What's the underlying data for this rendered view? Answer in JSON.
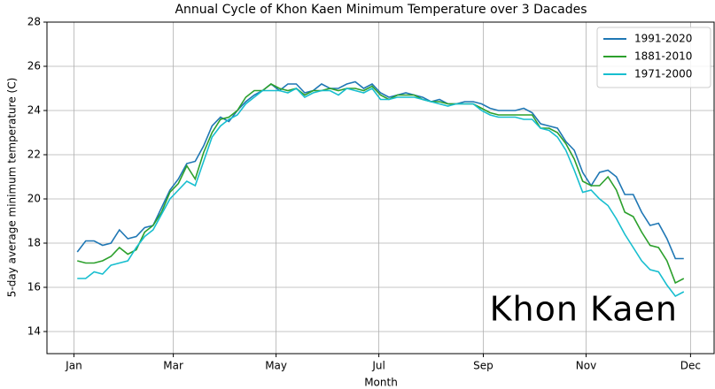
{
  "chart_data": {
    "type": "line",
    "title": "Annual Cycle of Khon Kaen Minimum Temperature over 3 Dacades",
    "xlabel": "Month",
    "ylabel": "5-day average minimum temperature (C)",
    "annotation": "Khon Kaen",
    "x": [
      2,
      7,
      12,
      17,
      22,
      27,
      32,
      37,
      42,
      47,
      52,
      57,
      62,
      67,
      72,
      77,
      82,
      87,
      92,
      97,
      102,
      107,
      112,
      117,
      122,
      127,
      132,
      137,
      142,
      147,
      152,
      157,
      162,
      167,
      172,
      177,
      182,
      187,
      192,
      197,
      202,
      207,
      212,
      217,
      222,
      227,
      232,
      237,
      242,
      247,
      252,
      257,
      262,
      267,
      272,
      277,
      282,
      287,
      292,
      297,
      302,
      307,
      312,
      317,
      322,
      327,
      332,
      337,
      342,
      347,
      352,
      357,
      362
    ],
    "series": [
      {
        "name": "1991-2020",
        "color": "#1f77b4",
        "values": [
          17.6,
          18.1,
          18.1,
          17.9,
          18.0,
          18.6,
          18.2,
          18.3,
          18.7,
          18.8,
          19.6,
          20.4,
          20.9,
          21.6,
          21.7,
          22.4,
          23.3,
          23.7,
          23.5,
          24.0,
          24.4,
          24.7,
          24.9,
          25.2,
          24.9,
          25.2,
          25.2,
          24.8,
          24.9,
          25.2,
          25.0,
          25.0,
          25.2,
          25.3,
          25.0,
          25.2,
          24.8,
          24.6,
          24.7,
          24.8,
          24.7,
          24.6,
          24.4,
          24.5,
          24.3,
          24.3,
          24.4,
          24.4,
          24.3,
          24.1,
          24.0,
          24.0,
          24.0,
          24.1,
          23.9,
          23.4,
          23.3,
          23.2,
          22.6,
          22.2,
          21.2,
          20.6,
          21.2,
          21.3,
          21.0,
          20.2,
          20.2,
          19.4,
          18.8,
          18.9,
          18.2,
          17.3,
          17.3
        ]
      },
      {
        "name": "1881-2010",
        "color": "#2ca02c",
        "values": [
          17.2,
          17.1,
          17.1,
          17.2,
          17.4,
          17.8,
          17.5,
          17.7,
          18.5,
          18.8,
          19.4,
          20.3,
          20.7,
          21.5,
          20.9,
          22.1,
          23.0,
          23.6,
          23.7,
          24.0,
          24.6,
          24.9,
          24.9,
          25.2,
          25.0,
          24.9,
          25.0,
          24.7,
          24.9,
          24.9,
          25.0,
          24.9,
          25.0,
          25.0,
          24.9,
          25.1,
          24.7,
          24.5,
          24.7,
          24.7,
          24.7,
          24.5,
          24.4,
          24.4,
          24.3,
          24.3,
          24.3,
          24.3,
          24.1,
          23.9,
          23.8,
          23.8,
          23.8,
          23.8,
          23.8,
          23.2,
          23.2,
          23.0,
          22.5,
          21.8,
          20.8,
          20.6,
          20.6,
          21.0,
          20.4,
          19.4,
          19.2,
          18.5,
          17.9,
          17.8,
          17.2,
          16.2,
          16.4
        ]
      },
      {
        "name": "1971-2000",
        "color": "#17becf",
        "values": [
          16.4,
          16.4,
          16.7,
          16.6,
          17.0,
          17.1,
          17.2,
          17.8,
          18.3,
          18.6,
          19.3,
          20.0,
          20.4,
          20.8,
          20.6,
          21.7,
          22.8,
          23.3,
          23.6,
          23.8,
          24.3,
          24.6,
          24.9,
          24.9,
          24.9,
          24.8,
          25.0,
          24.6,
          24.8,
          24.9,
          24.9,
          24.7,
          25.0,
          24.9,
          24.8,
          25.0,
          24.5,
          24.5,
          24.6,
          24.6,
          24.6,
          24.5,
          24.4,
          24.3,
          24.2,
          24.3,
          24.3,
          24.3,
          24.0,
          23.8,
          23.7,
          23.7,
          23.7,
          23.6,
          23.6,
          23.2,
          23.1,
          22.8,
          22.2,
          21.3,
          20.3,
          20.4,
          20.0,
          19.7,
          19.1,
          18.4,
          17.8,
          17.2,
          16.8,
          16.7,
          16.1,
          15.6,
          15.8
        ]
      }
    ],
    "xlim": [
      -16,
      380
    ],
    "ylim": [
      13,
      28
    ],
    "xticks": [
      {
        "value": 0,
        "label": "Jan"
      },
      {
        "value": 59,
        "label": "Mar"
      },
      {
        "value": 120,
        "label": "May"
      },
      {
        "value": 181,
        "label": "Jul"
      },
      {
        "value": 243,
        "label": "Sep"
      },
      {
        "value": 304,
        "label": "Nov"
      },
      {
        "value": 366,
        "label": "Dec"
      }
    ],
    "yticks": [
      14,
      16,
      18,
      20,
      22,
      24,
      26,
      28
    ],
    "grid": true,
    "legend": "upper right"
  }
}
